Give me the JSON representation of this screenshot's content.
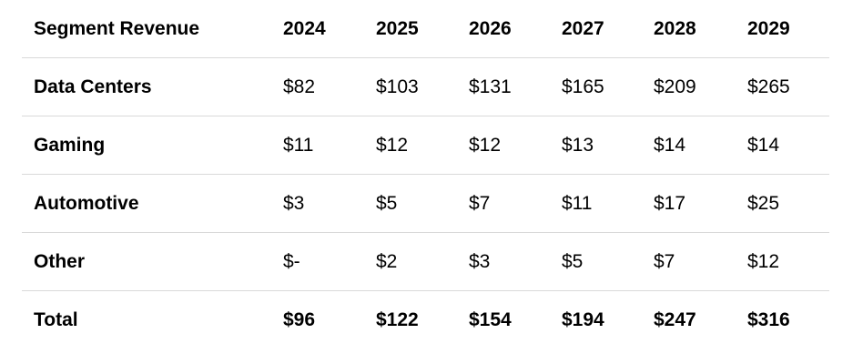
{
  "table": {
    "header": {
      "label": "Segment Revenue",
      "years": [
        "2024",
        "2025",
        "2026",
        "2027",
        "2028",
        "2029"
      ]
    },
    "rows": [
      {
        "label": "Data Centers",
        "values": [
          "$82",
          "$103",
          "$131",
          "$165",
          "$209",
          "$265"
        ]
      },
      {
        "label": "Gaming",
        "values": [
          "$11",
          "$12",
          "$12",
          "$13",
          "$14",
          "$14"
        ]
      },
      {
        "label": "Automotive",
        "values": [
          "$3",
          "$5",
          "$7",
          "$11",
          "$17",
          "$25"
        ]
      },
      {
        "label": "Other",
        "values": [
          "$-",
          "$2",
          "$3",
          "$5",
          "$7",
          "$12"
        ]
      },
      {
        "label": "Total",
        "values": [
          "$96",
          "$122",
          "$154",
          "$194",
          "$247",
          "$316"
        ]
      }
    ]
  }
}
